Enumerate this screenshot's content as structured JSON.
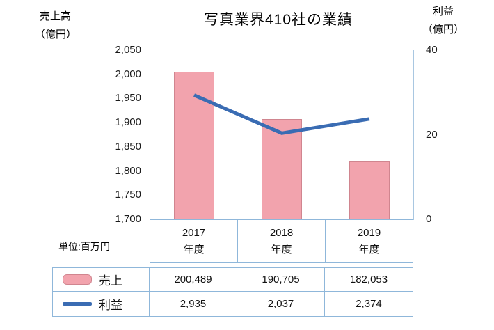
{
  "title": "写真業界410社の業績",
  "axes": {
    "left": {
      "label_line1": "売上高",
      "label_line2": "（億円）",
      "ticks": [
        "2,050",
        "2,000",
        "1,950",
        "1,900",
        "1,850",
        "1,800",
        "1,750",
        "1,700"
      ]
    },
    "right": {
      "label_line1": "利益",
      "label_line2": "（億円）",
      "ticks": [
        "40",
        "20",
        "0"
      ]
    }
  },
  "unit_note": "単位:百万円",
  "chart_data": {
    "type": "bar",
    "title": "写真業界410社の業績",
    "categories": [
      "2017年度",
      "2018年度",
      "2019年度"
    ],
    "series": [
      {
        "name": "売上",
        "chart": "bar",
        "axis": "left",
        "unit": "百万円",
        "values": [
          200489,
          190705,
          182053
        ],
        "color": "#f2a3ad",
        "border_color": "#d0858f"
      },
      {
        "name": "利益",
        "chart": "line",
        "axis": "right",
        "unit": "百万円",
        "values": [
          2935,
          2037,
          2374
        ],
        "color": "#3a6cb3"
      }
    ],
    "left_axis": {
      "label": "売上高（億円）",
      "min": 1700,
      "max": 2050,
      "tick_step": 50
    },
    "right_axis": {
      "label": "利益（億円）",
      "min": 0,
      "max": 40,
      "tick_step": 20
    },
    "unit_conversion": "1億円 = 100百万円",
    "grid": false,
    "legend_position": "table-left"
  },
  "table": {
    "year_cells": [
      {
        "line1": "2017",
        "line2": "年度"
      },
      {
        "line1": "2018",
        "line2": "年度"
      },
      {
        "line1": "2019",
        "line2": "年度"
      }
    ],
    "rows": [
      {
        "legend": "売上",
        "values": [
          "200,489",
          "190,705",
          "182,053"
        ]
      },
      {
        "legend": "利益",
        "values": [
          "2,935",
          "2,037",
          "2,374"
        ]
      }
    ]
  }
}
